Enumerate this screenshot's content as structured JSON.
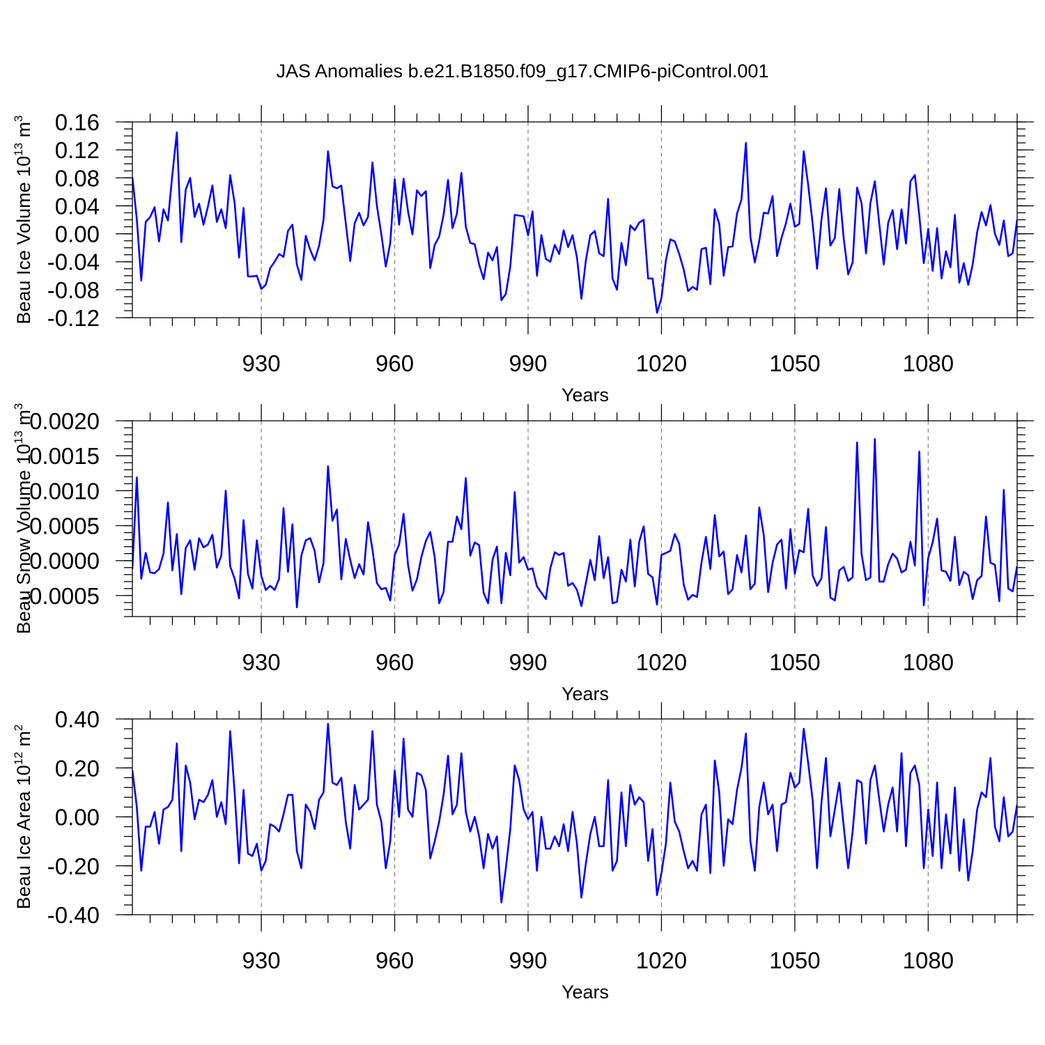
{
  "title": "JAS Anomalies b.e21.B1850.f09_g17.CMIP6-piControl.001",
  "colors": {
    "series": "#0000ff",
    "axis": "#000000",
    "grid": "#808080"
  },
  "chart_data": [
    {
      "type": "line",
      "ylabel_prefix": "Beau Ice Volume 10",
      "ylabel_exp": "13",
      "ylabel_unit": " m",
      "ylabel_unit_exp": "3",
      "xlabel": "Years",
      "xlim": [
        901,
        1100
      ],
      "xticks": [
        930,
        960,
        990,
        1020,
        1050,
        1080
      ],
      "xtick_labels": [
        "930",
        "960",
        "990",
        "1020",
        "1050",
        "1080"
      ],
      "xgrid": true,
      "ylim": [
        -0.12,
        0.16
      ],
      "yticks": [
        0.16,
        0.12,
        0.08,
        0.04,
        0.0,
        -0.04,
        -0.08,
        -0.12
      ],
      "ytick_labels": [
        "0.16",
        "0.12",
        "0.08",
        "0.04",
        "0.00",
        "-0.04",
        "-0.08",
        "-0.12"
      ],
      "yminor_step": 0.01,
      "series": [
        {
          "name": "Beau Ice Volume",
          "values": [
            0.081,
            0.021,
            -0.067,
            0.017,
            0.024,
            0.038,
            -0.011,
            0.035,
            0.019,
            0.085,
            0.145,
            -0.012,
            0.063,
            0.08,
            0.024,
            0.043,
            0.013,
            0.039,
            0.069,
            0.017,
            0.035,
            0.008,
            0.084,
            0.044,
            -0.034,
            0.037,
            -0.061,
            -0.061,
            -0.06,
            -0.079,
            -0.073,
            -0.049,
            -0.04,
            -0.029,
            -0.033,
            0.004,
            0.013,
            -0.044,
            -0.066,
            -0.003,
            -0.023,
            -0.038,
            -0.017,
            0.02,
            0.118,
            0.068,
            0.065,
            0.069,
            0.015,
            -0.039,
            0.015,
            0.03,
            0.012,
            0.024,
            0.102,
            0.04,
            -0.001,
            -0.047,
            -0.013,
            0.078,
            0.013,
            0.079,
            0.032,
            -0.001,
            0.062,
            0.054,
            0.061,
            -0.049,
            -0.016,
            -0.004,
            0.027,
            0.077,
            0.008,
            0.029,
            0.087,
            0.01,
            -0.013,
            -0.015,
            -0.044,
            -0.065,
            -0.027,
            -0.038,
            -0.019,
            -0.095,
            -0.086,
            -0.047,
            0.027,
            0.026,
            0.025,
            -0.002,
            0.032,
            -0.06,
            -0.002,
            -0.036,
            -0.04,
            -0.016,
            -0.029,
            0.005,
            -0.019,
            -0.002,
            -0.034,
            -0.093,
            -0.038,
            -0.002,
            0.004,
            -0.028,
            -0.032,
            0.05,
            -0.064,
            -0.08,
            -0.013,
            -0.045,
            0.012,
            0.005,
            0.016,
            0.02,
            -0.064,
            -0.064,
            -0.113,
            -0.092,
            -0.038,
            -0.008,
            -0.011,
            -0.029,
            -0.051,
            -0.082,
            -0.076,
            -0.08,
            -0.022,
            -0.02,
            -0.072,
            0.035,
            0.014,
            -0.06,
            -0.019,
            -0.018,
            0.029,
            0.049,
            0.13,
            -0.004,
            -0.041,
            -0.01,
            0.03,
            0.029,
            0.054,
            -0.032,
            -0.006,
            0.015,
            0.043,
            0.01,
            0.014,
            0.118,
            0.07,
            0.015,
            -0.05,
            0.021,
            0.065,
            -0.017,
            -0.006,
            0.064,
            -0.007,
            -0.058,
            -0.041,
            0.066,
            0.044,
            -0.028,
            0.044,
            0.075,
            0.014,
            -0.044,
            0.016,
            0.034,
            -0.022,
            0.035,
            -0.014,
            0.075,
            0.084,
            0.026,
            -0.042,
            0.007,
            -0.053,
            0.008,
            -0.064,
            -0.025,
            -0.048,
            0.027,
            -0.07,
            -0.042,
            -0.073,
            -0.044,
            0.002,
            0.031,
            0.012,
            0.041,
            0.0,
            -0.016,
            0.019,
            -0.032,
            -0.028,
            0.02
          ]
        }
      ]
    },
    {
      "type": "line",
      "ylabel_prefix": "Beau Snow Volume 10",
      "ylabel_exp": "13",
      "ylabel_unit": " m",
      "ylabel_unit_exp": "3",
      "xlabel": "Years",
      "xlim": [
        901,
        1100
      ],
      "xticks": [
        930,
        960,
        990,
        1020,
        1050,
        1080
      ],
      "xtick_labels": [
        "930",
        "960",
        "990",
        "1020",
        "1050",
        "1080"
      ],
      "xgrid": true,
      "ylim": [
        -0.0008,
        0.002
      ],
      "yticks": [
        0.002,
        0.0015,
        0.001,
        0.0005,
        0.0,
        -0.0005
      ],
      "ytick_labels": [
        "0.0020",
        "0.0015",
        "0.0010",
        "0.0005",
        "0.0000",
        "-0.0005"
      ],
      "yminor_step": 0.0001,
      "series": [
        {
          "name": "Beau Snow Volume",
          "values": [
            -0.00012,
            0.00119,
            -0.00026,
            0.00011,
            -0.00017,
            -0.00018,
            -0.00012,
            0.0001,
            0.00083,
            -0.00014,
            0.00038,
            -0.00048,
            0.00018,
            0.00029,
            -0.00013,
            0.00032,
            0.00019,
            0.00023,
            0.00037,
            -0.0001,
            7e-05,
            0.001,
            -8e-05,
            -0.00026,
            -0.00054,
            0.00058,
            -0.00019,
            -0.0004,
            0.00029,
            -0.00022,
            -0.00042,
            -0.00036,
            -0.00042,
            -0.00026,
            0.00075,
            -0.00016,
            0.00052,
            -0.00067,
            7e-05,
            0.00029,
            0.00032,
            0.00014,
            -0.00031,
            -3e-05,
            0.00135,
            0.00057,
            0.00073,
            -0.00027,
            0.00031,
            1e-05,
            -0.00025,
            -5e-05,
            -0.0002,
            0.00055,
            0.00016,
            -0.00032,
            -0.00041,
            -0.00039,
            -0.00057,
            8e-05,
            0.00023,
            0.00067,
            -6e-05,
            -0.00043,
            -0.00027,
            5e-05,
            0.00028,
            0.00041,
            5e-05,
            -0.00061,
            -0.00045,
            0.00027,
            0.00027,
            0.00063,
            0.00045,
            0.00118,
            7e-05,
            0.00026,
            0.00022,
            -0.00046,
            -0.00061,
            1e-05,
            0.0002,
            -0.00061,
            0.00011,
            -0.00021,
            0.00098,
            -3e-05,
            5e-05,
            -0.00013,
            -0.00011,
            -0.00037,
            -0.00046,
            -0.00055,
            -0.00011,
            0.00012,
            8e-05,
            0.00011,
            -0.00036,
            -0.00032,
            -0.00042,
            -0.00065,
            -0.00032,
            1e-05,
            -0.00028,
            0.00035,
            -0.00025,
            5e-05,
            -0.00061,
            -0.00059,
            -0.00013,
            -0.0003,
            0.0003,
            -0.00037,
            0.00027,
            0.00049,
            -0.00019,
            -0.00024,
            -0.00063,
            8e-05,
            0.00011,
            0.00014,
            0.00038,
            0.00024,
            -0.00034,
            -0.00056,
            -0.00049,
            -0.00052,
            -3e-05,
            0.00034,
            -0.00012,
            0.00065,
            6e-05,
            0.00013,
            -0.00048,
            -0.00041,
            8e-05,
            -0.00017,
            0.00036,
            -0.00041,
            -0.00033,
            0.00076,
            0.00037,
            -0.00045,
            -3e-05,
            0.00023,
            0.0003,
            -0.0004,
            0.00045,
            -0.00019,
            0.00015,
            0.00012,
            0.00074,
            -0.00021,
            -0.00036,
            -0.00025,
            0.00048,
            -0.00053,
            -0.00057,
            -0.00014,
            -9e-05,
            -0.00029,
            -0.00024,
            0.00169,
            0.0001,
            -0.00028,
            -0.00024,
            0.00174,
            -0.0003,
            -0.0003,
            -5e-05,
            0.0001,
            3e-05,
            -0.00017,
            -0.00013,
            0.00027,
            -7e-05,
            0.00156,
            -0.00064,
            4e-05,
            0.00026,
            0.0006,
            -0.00014,
            -0.00016,
            -0.00029,
            0.00034,
            -0.00035,
            -0.00016,
            -0.00021,
            -0.00055,
            -0.00028,
            -0.00022,
            0.00063,
            -3e-05,
            -6e-05,
            -0.00058,
            0.00101,
            -0.0004,
            -0.00044,
            -8e-05
          ]
        }
      ]
    },
    {
      "type": "line",
      "ylabel_prefix": "Beau Ice Area 10",
      "ylabel_exp": "12",
      "ylabel_unit": " m",
      "ylabel_unit_exp": "2",
      "xlabel": "Years",
      "xlim": [
        901,
        1100
      ],
      "xticks": [
        930,
        960,
        990,
        1020,
        1050,
        1080
      ],
      "xtick_labels": [
        "930",
        "960",
        "990",
        "1020",
        "1050",
        "1080"
      ],
      "xgrid": true,
      "ylim": [
        -0.4,
        0.4
      ],
      "yticks": [
        0.4,
        0.2,
        0.0,
        -0.2,
        -0.4
      ],
      "ytick_labels": [
        "0.40",
        "0.20",
        "0.00",
        "-0.20",
        "-0.40"
      ],
      "yminor_step": 0.04,
      "series": [
        {
          "name": "Beau Ice Area",
          "values": [
            0.19,
            0.04,
            -0.22,
            -0.04,
            -0.04,
            0.02,
            -0.11,
            0.03,
            0.04,
            0.07,
            0.3,
            -0.14,
            0.21,
            0.14,
            -0.01,
            0.07,
            0.06,
            0.09,
            0.15,
            0.0,
            0.06,
            -0.03,
            0.35,
            0.1,
            -0.19,
            0.11,
            -0.15,
            -0.16,
            -0.11,
            -0.22,
            -0.18,
            -0.03,
            -0.04,
            -0.06,
            0.01,
            0.09,
            0.09,
            -0.14,
            -0.21,
            0.05,
            0.02,
            -0.05,
            0.07,
            0.1,
            0.38,
            0.14,
            0.13,
            0.16,
            -0.02,
            -0.13,
            0.13,
            0.03,
            0.05,
            0.07,
            0.35,
            0.05,
            -0.02,
            -0.21,
            -0.1,
            0.19,
            0.0,
            0.32,
            0.03,
            0.0,
            0.18,
            0.17,
            0.11,
            -0.17,
            -0.1,
            -0.02,
            0.09,
            0.25,
            0.01,
            0.05,
            0.26,
            0.02,
            -0.06,
            0.0,
            -0.08,
            -0.21,
            -0.07,
            -0.13,
            -0.08,
            -0.35,
            -0.21,
            -0.05,
            0.21,
            0.15,
            0.03,
            -0.01,
            0.02,
            -0.22,
            0.0,
            -0.13,
            -0.13,
            -0.08,
            -0.12,
            -0.03,
            -0.14,
            0.02,
            -0.11,
            -0.33,
            -0.19,
            -0.07,
            0.0,
            -0.12,
            -0.12,
            0.15,
            -0.22,
            -0.18,
            0.1,
            -0.12,
            0.13,
            0.05,
            0.08,
            0.06,
            -0.18,
            -0.05,
            -0.32,
            -0.23,
            -0.11,
            0.14,
            -0.02,
            -0.06,
            -0.14,
            -0.21,
            -0.18,
            -0.22,
            0.01,
            0.05,
            -0.23,
            0.23,
            0.1,
            -0.2,
            -0.01,
            -0.03,
            0.11,
            0.2,
            0.34,
            -0.1,
            -0.22,
            0.04,
            0.14,
            0.01,
            0.05,
            -0.14,
            0.05,
            0.06,
            0.18,
            0.12,
            0.14,
            0.36,
            0.22,
            0.07,
            -0.21,
            0.06,
            0.24,
            -0.08,
            0.03,
            0.14,
            -0.04,
            -0.21,
            -0.06,
            0.15,
            0.14,
            -0.11,
            0.15,
            0.21,
            0.07,
            -0.06,
            0.05,
            0.12,
            -0.06,
            0.26,
            -0.12,
            0.18,
            0.21,
            0.13,
            -0.21,
            0.03,
            -0.16,
            0.14,
            -0.21,
            0.01,
            -0.15,
            0.12,
            -0.22,
            -0.01,
            -0.26,
            -0.14,
            0.03,
            0.1,
            0.08,
            0.24,
            -0.04,
            -0.1,
            0.08,
            -0.08,
            -0.06,
            0.05
          ]
        }
      ]
    }
  ]
}
